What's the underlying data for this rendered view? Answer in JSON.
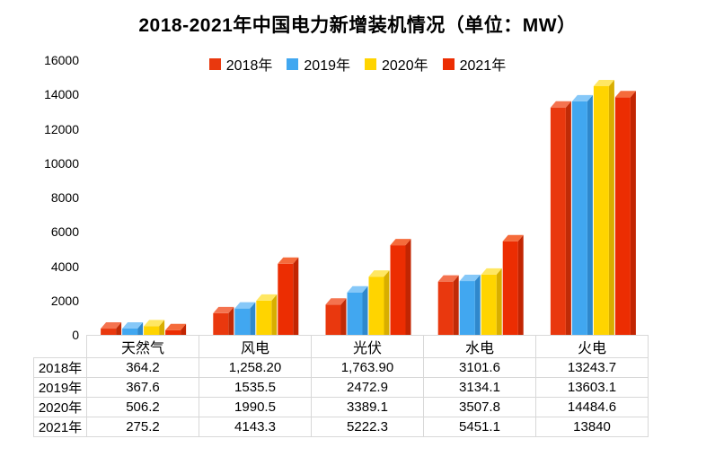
{
  "title": "2018-2021年中国电力新增装机情况（单位：MW）",
  "unit_label": "MW",
  "chart_data": {
    "type": "bar",
    "title": "2018-2021年中国电力新增装机情况（单位：MW）",
    "categories": [
      "天然气",
      "风电",
      "光伏",
      "水电",
      "火电"
    ],
    "series": [
      {
        "name": "2018年",
        "front": "#E9380E",
        "top": "#F4734F",
        "side": "#C02B07",
        "values": [
          364.2,
          1258.2,
          1763.9,
          3101.6,
          13243.7
        ]
      },
      {
        "name": "2019年",
        "front": "#41A7F0",
        "top": "#86C8F8",
        "side": "#2F88CC",
        "values": [
          367.6,
          1535.5,
          2472.9,
          3134.1,
          13603.1
        ]
      },
      {
        "name": "2020年",
        "front": "#FFD400",
        "top": "#FFE763",
        "side": "#D8AE00",
        "values": [
          506.2,
          1990.5,
          3389.1,
          3507.8,
          14484.6
        ]
      },
      {
        "name": "2021年",
        "front": "#EC2D02",
        "top": "#F56B3B",
        "side": "#C22502",
        "values": [
          275.2,
          4143.3,
          5222.3,
          5451.1,
          13840
        ]
      }
    ],
    "xlabel": "",
    "ylabel": "",
    "ylim": [
      0,
      16000
    ],
    "yticks": [
      0,
      2000,
      4000,
      6000,
      8000,
      10000,
      12000,
      14000,
      16000
    ],
    "grid": false,
    "legend_position": "top",
    "bar_style": "3d"
  },
  "table": {
    "column_headers": [
      "天然气",
      "风电",
      "光伏",
      "水电",
      "火电"
    ],
    "rows": [
      {
        "label": "2018年",
        "values": [
          "364.2",
          "1,258.20",
          "1,763.90",
          "3101.6",
          "13243.7"
        ]
      },
      {
        "label": "2019年",
        "values": [
          "367.6",
          "1535.5",
          "2472.9",
          "3134.1",
          "13603.1"
        ]
      },
      {
        "label": "2020年",
        "values": [
          "506.2",
          "1990.5",
          "3389.1",
          "3507.8",
          "14484.6"
        ]
      },
      {
        "label": "2021年",
        "values": [
          "275.2",
          "4143.3",
          "5222.3",
          "5451.1",
          "13840"
        ]
      }
    ]
  }
}
